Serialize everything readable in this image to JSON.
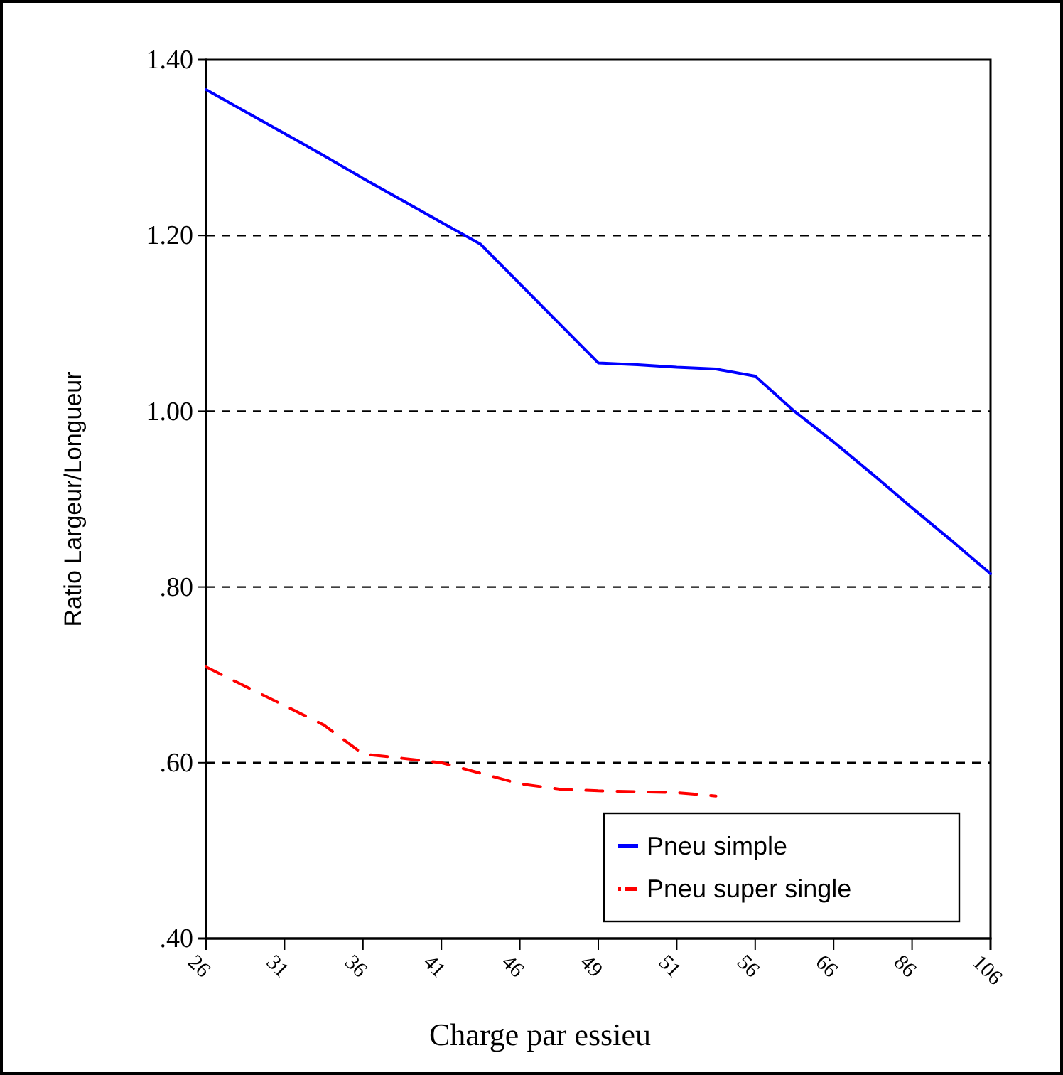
{
  "chart_data": {
    "type": "line",
    "xlabel": "Charge par essieu",
    "ylabel": "Ratio Largeur/Longueur",
    "categories": [
      "26",
      null,
      "31",
      null,
      "36",
      null,
      "41",
      null,
      "46",
      null,
      "49",
      null,
      "51",
      null,
      "56",
      null,
      "66",
      null,
      "86",
      null,
      "106"
    ],
    "series": [
      {
        "name": "Pneu simple",
        "color": "#0000ff",
        "line_style": "solid",
        "values": [
          1.366,
          1.341,
          1.316,
          1.291,
          1.265,
          1.24,
          1.215,
          1.19,
          1.145,
          1.1,
          1.055,
          1.053,
          1.05,
          1.048,
          1.04,
          1.0,
          0.965,
          0.928,
          0.89,
          0.853,
          0.815
        ]
      },
      {
        "name": "Pneu super single",
        "color": "#ff0000",
        "line_style": "dashed",
        "values": [
          0.709,
          0.687,
          0.665,
          0.643,
          0.61,
          0.605,
          0.6,
          0.588,
          0.576,
          0.57,
          0.568,
          0.567,
          0.566,
          0.562,
          null,
          null,
          null,
          null,
          null,
          null,
          null
        ]
      }
    ],
    "ylim": [
      0.4,
      1.4
    ],
    "yticks": [
      {
        "value": 0.4,
        "label": ".40"
      },
      {
        "value": 0.6,
        "label": ".60"
      },
      {
        "value": 0.8,
        "label": ".80"
      },
      {
        "value": 1.0,
        "label": "1.00"
      },
      {
        "value": 1.2,
        "label": "1.20"
      },
      {
        "value": 1.4,
        "label": "1.40"
      }
    ],
    "grid": "y",
    "legend": "bottom right",
    "marker": "none"
  }
}
